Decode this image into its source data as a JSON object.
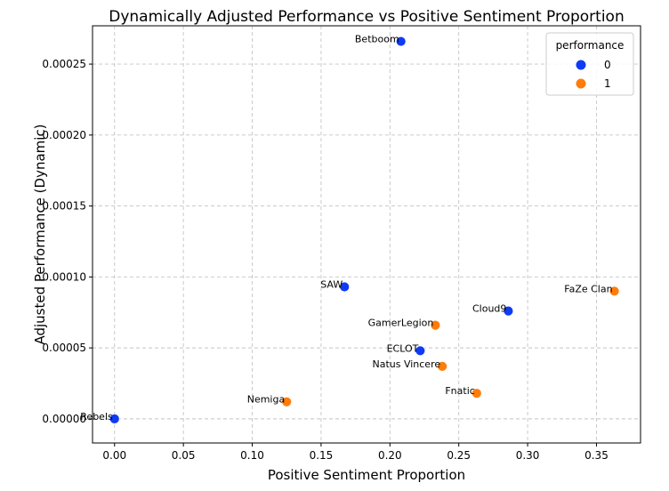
{
  "chart_data": {
    "type": "scatter",
    "title": "Dynamically Adjusted Performance vs Positive Sentiment Proportion",
    "xlabel": "Positive Sentiment Proportion",
    "ylabel": "Adjusted Performance (Dynamic)",
    "xlim": [
      -0.016,
      0.382
    ],
    "ylim": [
      -1.7e-05,
      0.000277
    ],
    "xticks": [
      0.0,
      0.05,
      0.1,
      0.15,
      0.2,
      0.25,
      0.3,
      0.35
    ],
    "xtick_labels": [
      "0.00",
      "0.05",
      "0.10",
      "0.15",
      "0.20",
      "0.25",
      "0.30",
      "0.35"
    ],
    "yticks": [
      0.0,
      5e-05,
      0.0001,
      0.00015,
      0.0002,
      0.00025
    ],
    "ytick_labels": [
      "0.00000",
      "0.00005",
      "0.00010",
      "0.00015",
      "0.00020",
      "0.00025"
    ],
    "grid": true,
    "legend": {
      "title": "performance",
      "placement": "top-right",
      "entries": [
        {
          "label": "0",
          "color": "#0f3bf5"
        },
        {
          "label": "1",
          "color": "#ff7c0a"
        }
      ]
    },
    "points": [
      {
        "name": "Betboom",
        "x": 0.208,
        "y": 0.000266,
        "performance": "0"
      },
      {
        "name": "SAW",
        "x": 0.167,
        "y": 9.3e-05,
        "performance": "0"
      },
      {
        "name": "Cloud9",
        "x": 0.286,
        "y": 7.6e-05,
        "performance": "0"
      },
      {
        "name": "ECLOT",
        "x": 0.222,
        "y": 4.8e-05,
        "performance": "0"
      },
      {
        "name": "Rebels",
        "x": 0.0,
        "y": 0.0,
        "performance": "0"
      },
      {
        "name": "FaZe Clan",
        "x": 0.363,
        "y": 9e-05,
        "performance": "1"
      },
      {
        "name": "GamerLegion",
        "x": 0.233,
        "y": 6.6e-05,
        "performance": "1"
      },
      {
        "name": "Natus Vincere",
        "x": 0.238,
        "y": 3.7e-05,
        "performance": "1"
      },
      {
        "name": "Fnatic",
        "x": 0.263,
        "y": 1.8e-05,
        "performance": "1"
      },
      {
        "name": "Nemiga",
        "x": 0.125,
        "y": 1.2e-05,
        "performance": "1"
      }
    ]
  }
}
